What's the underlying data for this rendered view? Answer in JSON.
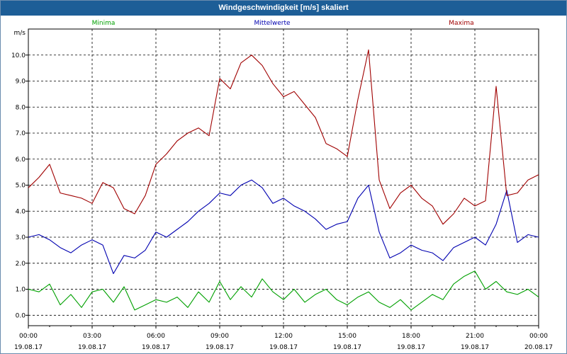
{
  "window": {
    "title": "Windgeschwindigkeit [m/s] skaliert"
  },
  "chart_data": {
    "type": "line",
    "title": "Windgeschwindigkeit [m/s] skaliert",
    "ylabel": "m/s",
    "ylim": [
      -0.4,
      11.0
    ],
    "xlim": [
      0,
      24
    ],
    "y_ticks": [
      "0.0",
      "1.0",
      "2.0",
      "3.0",
      "4.0",
      "5.0",
      "6.0",
      "7.0",
      "8.0",
      "9.0",
      "10.0"
    ],
    "x_ticks": [
      {
        "time": "00:00",
        "date": "19.08.17"
      },
      {
        "time": "03:00",
        "date": "19.08.17"
      },
      {
        "time": "06:00",
        "date": "19.08.17"
      },
      {
        "time": "09:00",
        "date": "19.08.17"
      },
      {
        "time": "12:00",
        "date": "19.08.17"
      },
      {
        "time": "15:00",
        "date": "19.08.17"
      },
      {
        "time": "18:00",
        "date": "19.08.17"
      },
      {
        "time": "21:00",
        "date": "19.08.17"
      },
      {
        "time": "00:00",
        "date": "20.08.17"
      }
    ],
    "grid": true,
    "legend_position": "top",
    "series": [
      {
        "name": "Minima",
        "color": "#00a000",
        "x": [
          0,
          0.5,
          1,
          1.5,
          2,
          2.5,
          3,
          3.5,
          4,
          4.5,
          5,
          5.5,
          6,
          6.5,
          7,
          7.5,
          8,
          8.5,
          9,
          9.5,
          10,
          10.5,
          11,
          11.5,
          12,
          12.5,
          13,
          13.5,
          14,
          14.5,
          15,
          15.5,
          16,
          16.5,
          17,
          17.5,
          18,
          18.5,
          19,
          19.5,
          20,
          20.5,
          21,
          21.5,
          22,
          22.5,
          23,
          23.5,
          24
        ],
        "values": [
          1.0,
          0.9,
          1.2,
          0.4,
          0.8,
          0.3,
          0.9,
          1.0,
          0.5,
          1.1,
          0.2,
          0.4,
          0.6,
          0.5,
          0.7,
          0.3,
          0.9,
          0.5,
          1.3,
          0.6,
          1.1,
          0.7,
          1.4,
          0.9,
          0.6,
          1.0,
          0.5,
          0.8,
          1.0,
          0.6,
          0.4,
          0.7,
          0.9,
          0.5,
          0.3,
          0.6,
          0.2,
          0.5,
          0.8,
          0.6,
          1.2,
          1.5,
          1.7,
          1.0,
          1.3,
          0.9,
          0.8,
          1.0,
          0.7
        ]
      },
      {
        "name": "Mittelwerte",
        "color": "#0000b0",
        "x": [
          0,
          0.5,
          1,
          1.5,
          2,
          2.5,
          3,
          3.5,
          4,
          4.5,
          5,
          5.5,
          6,
          6.5,
          7,
          7.5,
          8,
          8.5,
          9,
          9.5,
          10,
          10.5,
          11,
          11.5,
          12,
          12.5,
          13,
          13.5,
          14,
          14.5,
          15,
          15.5,
          16,
          16.5,
          17,
          17.5,
          18,
          18.5,
          19,
          19.5,
          20,
          20.5,
          21,
          21.5,
          22,
          22.5,
          23,
          23.5,
          24
        ],
        "values": [
          3.0,
          3.1,
          2.9,
          2.6,
          2.4,
          2.7,
          2.9,
          2.7,
          1.6,
          2.3,
          2.2,
          2.5,
          3.2,
          3.0,
          3.3,
          3.6,
          4.0,
          4.3,
          4.7,
          4.6,
          5.0,
          5.2,
          4.9,
          4.3,
          4.5,
          4.2,
          4.0,
          3.7,
          3.3,
          3.5,
          3.6,
          4.5,
          5.0,
          3.2,
          2.2,
          2.4,
          2.7,
          2.5,
          2.4,
          2.1,
          2.6,
          2.8,
          3.0,
          2.7,
          3.5,
          4.8,
          2.8,
          3.1,
          3.0
        ]
      },
      {
        "name": "Maxima",
        "color": "#a00000",
        "x": [
          0,
          0.5,
          1,
          1.5,
          2,
          2.5,
          3,
          3.5,
          4,
          4.5,
          5,
          5.5,
          6,
          6.5,
          7,
          7.5,
          8,
          8.5,
          9,
          9.5,
          10,
          10.5,
          11,
          11.5,
          12,
          12.5,
          13,
          13.5,
          14,
          14.5,
          15,
          15.5,
          16,
          16.5,
          17,
          17.5,
          18,
          18.5,
          19,
          19.5,
          20,
          20.5,
          21,
          21.5,
          22,
          22.5,
          23,
          23.5,
          24
        ],
        "values": [
          4.9,
          5.3,
          5.8,
          4.7,
          4.6,
          4.5,
          4.3,
          5.1,
          4.9,
          4.1,
          3.9,
          4.6,
          5.8,
          6.2,
          6.7,
          7.0,
          7.2,
          6.9,
          9.1,
          8.7,
          9.7,
          10.0,
          9.6,
          8.9,
          8.4,
          8.6,
          8.1,
          7.6,
          6.6,
          6.4,
          6.1,
          8.3,
          10.2,
          5.2,
          4.1,
          4.7,
          5.0,
          4.5,
          4.2,
          3.5,
          3.9,
          4.5,
          4.2,
          4.4,
          8.8,
          4.6,
          4.7,
          5.2,
          5.4
        ]
      }
    ]
  }
}
